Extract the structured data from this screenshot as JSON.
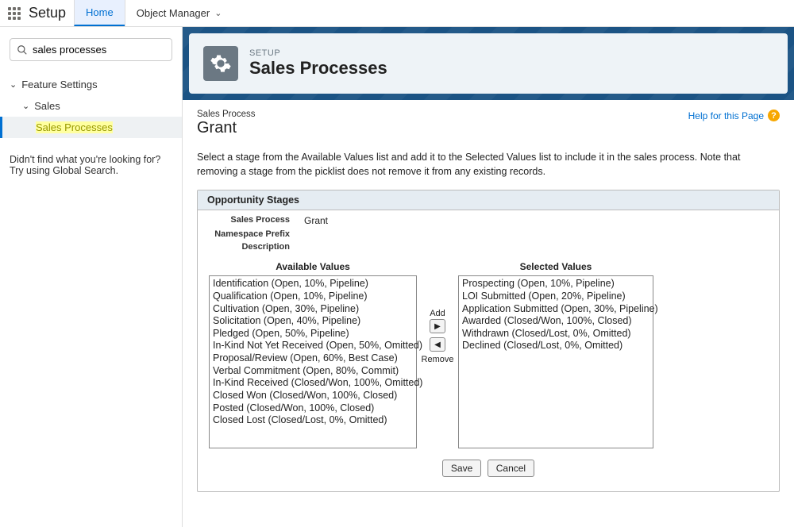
{
  "topbar": {
    "setup_label": "Setup",
    "tabs": {
      "home": "Home",
      "object_manager": "Object Manager"
    }
  },
  "sidebar": {
    "search_value": "sales processes",
    "tree": {
      "root": "Feature Settings",
      "l1": "Sales",
      "l2": "Sales Processes"
    },
    "no_result_l1": "Didn't find what you're looking for?",
    "no_result_l2": "Try using Global Search."
  },
  "banner": {
    "eyebrow": "SETUP",
    "title": "Sales Processes"
  },
  "record": {
    "crumb": "Sales Process",
    "name": "Grant",
    "help_label": "Help for this Page",
    "description": "Select a stage from the Available Values list and add it to the Selected Values list to include it in the sales process. Note that removing a stage from the picklist does not remove it from any existing records."
  },
  "panel": {
    "title": "Opportunity Stages",
    "fields": {
      "sales_process_label": "Sales Process",
      "sales_process_value": "Grant",
      "ns_label": "Namespace Prefix",
      "ns_value": "",
      "desc_label": "Description",
      "desc_value": ""
    },
    "available_title": "Available Values",
    "selected_title": "Selected Values",
    "available": [
      "Identification (Open, 10%, Pipeline)",
      "Qualification (Open, 10%, Pipeline)",
      "Cultivation (Open, 30%, Pipeline)",
      "Solicitation (Open, 40%, Pipeline)",
      "Pledged (Open, 50%, Pipeline)",
      "In-Kind Not Yet Received (Open, 50%, Omitted)",
      "Proposal/Review (Open, 60%, Best Case)",
      "Verbal Commitment (Open, 80%, Commit)",
      "In-Kind Received (Closed/Won, 100%, Omitted)",
      "Closed Won (Closed/Won, 100%, Closed)",
      "Posted (Closed/Won, 100%, Closed)",
      "Closed Lost (Closed/Lost, 0%, Omitted)"
    ],
    "selected": [
      "Prospecting (Open, 10%, Pipeline)",
      "LOI Submitted (Open, 20%, Pipeline)",
      "Application Submitted (Open, 30%, Pipeline)",
      "Awarded (Closed/Won, 100%, Closed)",
      "Withdrawn (Closed/Lost, 0%, Omitted)",
      "Declined (Closed/Lost, 0%, Omitted)"
    ],
    "add_label": "Add",
    "remove_label": "Remove"
  },
  "buttons": {
    "save": "Save",
    "cancel": "Cancel"
  }
}
